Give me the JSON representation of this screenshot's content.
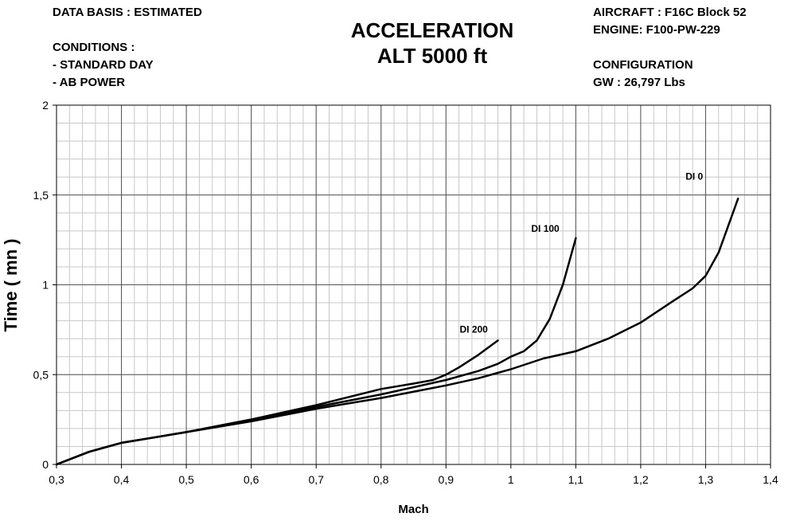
{
  "header_left": {
    "data_basis": "DATA BASIS : ESTIMATED",
    "conditions_title": "CONDITIONS :",
    "condition_1": "- STANDARD DAY",
    "condition_2": "- AB POWER"
  },
  "header_right": {
    "aircraft": "AIRCRAFT : F16C Block 52",
    "engine": "ENGINE: F100-PW-229",
    "configuration_title": "CONFIGURATION",
    "gross_weight": "GW : 26,797 Lbs"
  },
  "chart_data": {
    "type": "line",
    "title": "ACCELERATION",
    "subtitle": "ALT 5000 ft",
    "xlabel": "Mach",
    "ylabel": "Time ( mn )",
    "xlim": [
      0.3,
      1.4
    ],
    "ylim": [
      0,
      2
    ],
    "x_ticks": [
      "0,3",
      "0,4",
      "0,5",
      "0,6",
      "0,7",
      "0,8",
      "0,9",
      "1",
      "1,1",
      "1,2",
      "1,3",
      "1,4"
    ],
    "y_ticks": [
      "0",
      "0,5",
      "1",
      "1,5",
      "2"
    ],
    "grid": {
      "major": true,
      "minor": true,
      "minor_x_step": 0.02,
      "minor_y_step": 0.1
    },
    "legend": "none (curves labeled directly)",
    "line_color": "#000000",
    "series": [
      {
        "name": "DI 0",
        "x": [
          0.3,
          0.35,
          0.4,
          0.45,
          0.5,
          0.6,
          0.7,
          0.8,
          0.9,
          0.95,
          0.98,
          1.0,
          1.05,
          1.1,
          1.15,
          1.2,
          1.25,
          1.28,
          1.3,
          1.32,
          1.34,
          1.35
        ],
        "y": [
          0.0,
          0.07,
          0.12,
          0.15,
          0.18,
          0.24,
          0.31,
          0.37,
          0.44,
          0.48,
          0.51,
          0.53,
          0.59,
          0.63,
          0.7,
          0.79,
          0.91,
          0.98,
          1.05,
          1.18,
          1.38,
          1.48
        ]
      },
      {
        "name": "DI 100",
        "x": [
          0.3,
          0.35,
          0.4,
          0.45,
          0.5,
          0.6,
          0.7,
          0.8,
          0.9,
          0.95,
          0.98,
          1.0,
          1.02,
          1.04,
          1.06,
          1.08,
          1.1
        ],
        "y": [
          0.0,
          0.07,
          0.12,
          0.15,
          0.18,
          0.25,
          0.32,
          0.39,
          0.47,
          0.52,
          0.56,
          0.6,
          0.63,
          0.69,
          0.81,
          1.0,
          1.26
        ]
      },
      {
        "name": "DI 200",
        "x": [
          0.3,
          0.35,
          0.4,
          0.45,
          0.5,
          0.6,
          0.7,
          0.8,
          0.85,
          0.88,
          0.9,
          0.92,
          0.95,
          0.98
        ],
        "y": [
          0.0,
          0.07,
          0.12,
          0.15,
          0.18,
          0.25,
          0.33,
          0.42,
          0.45,
          0.47,
          0.5,
          0.54,
          0.61,
          0.69
        ]
      }
    ]
  }
}
